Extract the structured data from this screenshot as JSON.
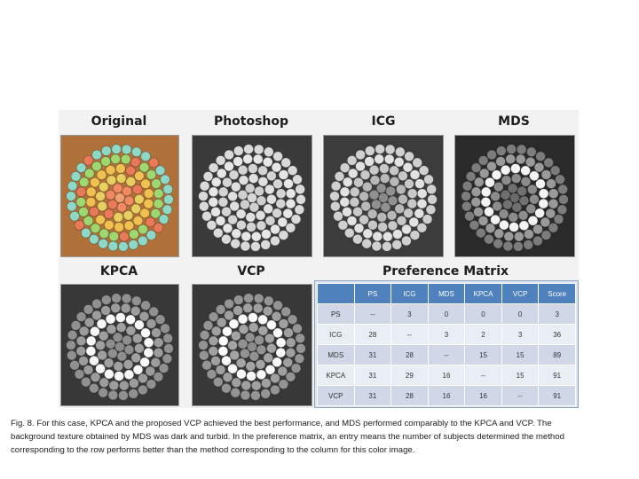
{
  "panels": {
    "original_label": "Original",
    "photoshop_label": "Photoshop",
    "icg_label": "ICG",
    "mds_label": "MDS",
    "kpca_label": "KPCA",
    "vcp_label": "VCP"
  },
  "matrix": {
    "title": "Preference Matrix",
    "headers": [
      "",
      "PS",
      "ICG",
      "MDS",
      "KPCA",
      "VCP",
      "Score"
    ],
    "rows": [
      {
        "name": "PS",
        "cells": [
          "--",
          "3",
          "0",
          "0",
          "0",
          "3"
        ]
      },
      {
        "name": "ICG",
        "cells": [
          "28",
          "--",
          "3",
          "2",
          "3",
          "36"
        ]
      },
      {
        "name": "MDS",
        "cells": [
          "31",
          "28",
          "--",
          "15",
          "15",
          "89"
        ]
      },
      {
        "name": "KPCA",
        "cells": [
          "31",
          "29",
          "16",
          "--",
          "15",
          "91"
        ]
      },
      {
        "name": "VCP",
        "cells": [
          "31",
          "28",
          "16",
          "16",
          "--",
          "91"
        ]
      }
    ]
  },
  "caption": {
    "line1": "Fig. 8. For this case, KPCA and the proposed VCP achieved the best performance, and MDS performed comparably to the KPCA and VCP. The",
    "line2": "background texture obtained by MDS was dark and turbid. In the preference matrix, an entry means the number of subjects determined the method",
    "line3": "corresponding to the row performs better than the method corresponding to the column for this color image."
  },
  "colors": {
    "header_blue": "#4f81bd",
    "row_light": "#d0d8e8",
    "row_lighter": "#e9edf4"
  }
}
